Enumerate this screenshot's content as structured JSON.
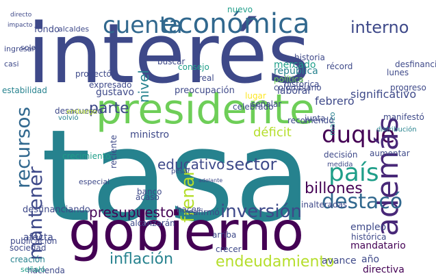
{
  "cloud": {
    "words": [
      "tasa",
      "interés",
      "gobierno",
      "presidente",
      "económica",
      "duque",
      "país",
      "recursos",
      "cuenta",
      "mantener",
      "además",
      "frenar",
      "inversión",
      "destacó",
      "educativo",
      "sector",
      "déficit",
      "inflación",
      "endeudamiento",
      "presupuesto",
      "interno",
      "parte",
      "nivel",
      "billones",
      "mercado",
      "república",
      "significativo",
      "ministro",
      "crecer",
      "alcanzarán",
      "hacer",
      "reafirmó",
      "empleo",
      "histórica",
      "mandatario",
      "avance",
      "directiva",
      "creación",
      "sociedad",
      "afecta",
      "desfinanciando",
      "año",
      "estabilidad",
      "gustavo",
      "fondo",
      "solo",
      "alcaldes",
      "consejo",
      "real",
      "política",
      "colombiano",
      "laboral",
      "febrero",
      "lugar",
      "junta",
      "decisión",
      "aumentar",
      "medida",
      "banco",
      "acaso",
      "preocupación",
      "desacuerdo",
      "volvió",
      "embargo",
      "reciente",
      "expresado",
      "proyectó",
      "histórica",
      "nuevo",
      "lunes",
      "historia",
      "desfinanciar",
      "señalar",
      "récord",
      "buscar",
      "pesar",
      "ingresar",
      "casi",
      "impacto",
      "directo",
      "publicación",
      "hacienda",
      "señaló",
      "arriba",
      "progreso",
      "celebrado",
      "distribución",
      "manifestó",
      "inalteradas",
      "marzo",
      "recomendó",
      "crecimiento",
      "especial",
      "adelante"
    ],
    "colors": {
      "dark_purple": "#440154",
      "purple": "#482878",
      "indigo": "#3e4989",
      "blue": "#31688e",
      "teal": "#26828e",
      "sea": "#1f9e89",
      "green": "#35b779",
      "lime": "#6ece58",
      "yellow_green": "#b5de2b",
      "yellow": "#fde725"
    }
  }
}
